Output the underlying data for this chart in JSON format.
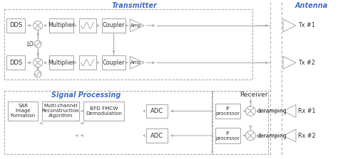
{
  "bg_color": "#ffffff",
  "box_color": "#ffffff",
  "line_color": "#aaaaaa",
  "blue_color": "#4472c4",
  "black_color": "#333333",
  "figsize": [
    4.74,
    2.24
  ],
  "dpi": 100,
  "tx_label": "Transmitter",
  "ant_label": "Antenna",
  "sp_label": "Signal Processing",
  "rx_label": "Receiver"
}
